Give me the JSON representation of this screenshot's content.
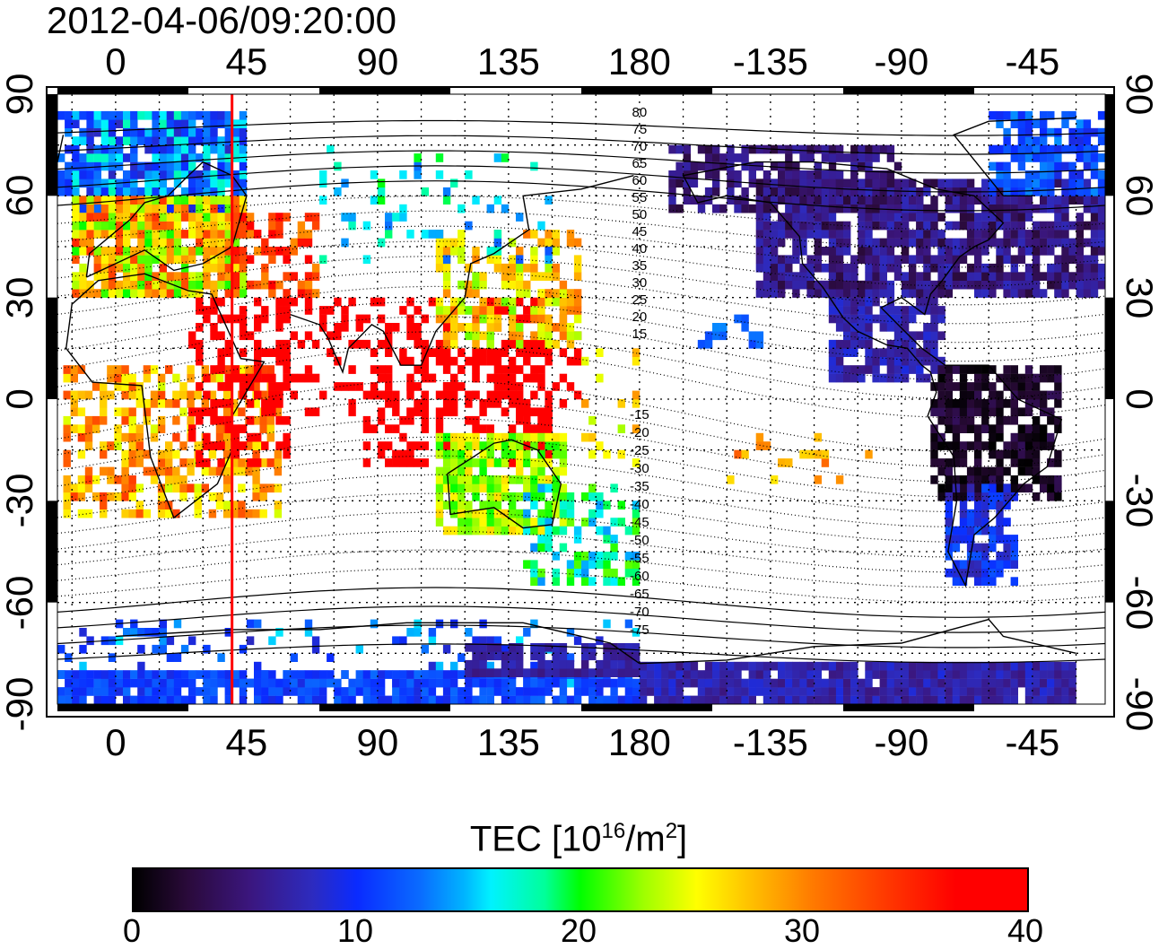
{
  "timestamp": "2012-04-06/09:20:00",
  "map": {
    "type": "global TEC map",
    "x_ticks": [
      "0",
      "45",
      "90",
      "135",
      "180",
      "-135",
      "-90",
      "-45"
    ],
    "y_ticks": [
      "90",
      "60",
      "30",
      "0",
      "-30",
      "-60",
      "-90"
    ],
    "contour_labels_north": [
      "80",
      "75",
      "70",
      "65",
      "60",
      "55",
      "50",
      "45",
      "40",
      "35",
      "30",
      "25",
      "20",
      "15"
    ],
    "contour_labels_south": [
      "-15",
      "-20",
      "-25",
      "-30",
      "-35",
      "-40",
      "-45",
      "-50",
      "-55",
      "-60",
      "-65",
      "-70",
      "-75"
    ],
    "marker_longitude": 40,
    "colors": {
      "marker": "#ff0000",
      "grid": "#000000",
      "coast": "#000000"
    }
  },
  "colorbar": {
    "title_prefix": "TEC  [10",
    "title_exp1": "16",
    "title_mid": "/m",
    "title_exp2": "2",
    "title_suffix": "]",
    "ticks": [
      "0",
      "10",
      "20",
      "30",
      "40"
    ],
    "range": [
      0,
      40
    ]
  }
}
